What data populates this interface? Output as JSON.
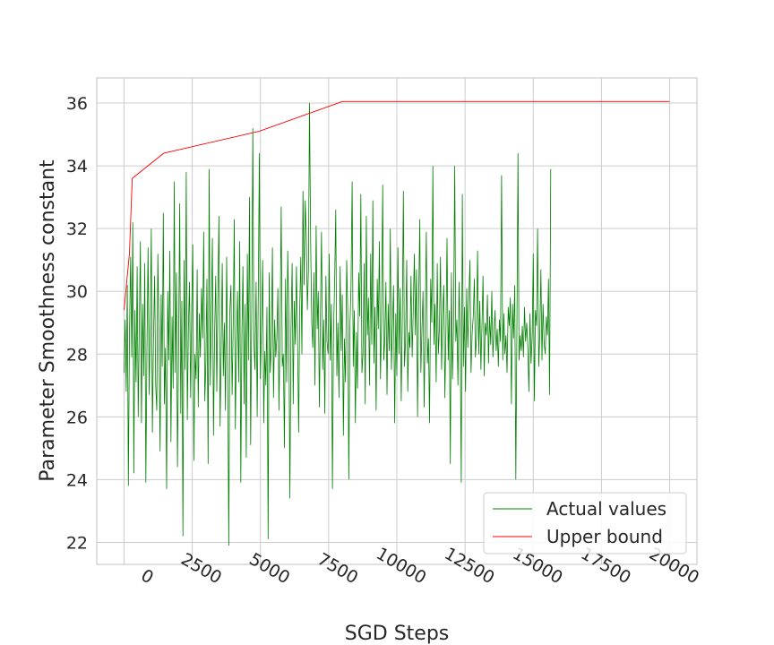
{
  "chart_data": {
    "type": "line",
    "title": "",
    "xlabel": "SGD Steps",
    "ylabel": "Parameter Smoothness constant",
    "xlim": [
      -1000,
      21000
    ],
    "ylim": [
      21.3,
      36.8
    ],
    "x_ticks": [
      0,
      2500,
      5000,
      7500,
      10000,
      12500,
      15000,
      17500,
      20000
    ],
    "x_tick_labels": [
      "0",
      "2500",
      "5000",
      "7500",
      "10000",
      "12500",
      "15000",
      "17500",
      "20000"
    ],
    "y_ticks": [
      22,
      24,
      26,
      28,
      30,
      32,
      34,
      36
    ],
    "y_tick_labels": [
      "22",
      "24",
      "26",
      "28",
      "30",
      "32",
      "34",
      "36"
    ],
    "grid": true,
    "legend_position": "bottom-right",
    "colors": {
      "actual": "#008000",
      "upper": "#ff0000",
      "grid": "#cccccc",
      "frame": "#cccccc"
    },
    "series": [
      {
        "name": "Actual values",
        "color": "#008000",
        "x_start": 0,
        "x_step": 40,
        "values": [
          27.4,
          29.1,
          26.8,
          30.2,
          23.8,
          28.6,
          31.1,
          27.9,
          32.2,
          24.2,
          29.4,
          27.1,
          30.8,
          26.0,
          28.9,
          31.6,
          25.8,
          29.6,
          27.3,
          30.9,
          23.9,
          28.1,
          31.4,
          26.7,
          29.0,
          32.0,
          25.5,
          28.4,
          30.5,
          27.0,
          26.2,
          31.2,
          28.7,
          24.9,
          29.9,
          27.6,
          32.5,
          26.4,
          28.2,
          23.7,
          30.0,
          27.8,
          31.3,
          25.2,
          29.2,
          26.9,
          33.5,
          27.4,
          30.6,
          24.4,
          28.3,
          32.8,
          26.1,
          29.7,
          22.2,
          31.0,
          27.5,
          33.8,
          25.9,
          28.8,
          30.3,
          26.6,
          29.5,
          31.5,
          24.6,
          28.0,
          27.2,
          30.7,
          26.3,
          29.3,
          27.9,
          30.1,
          28.5,
          31.9,
          26.5,
          27.7,
          30.4,
          24.5,
          33.9,
          27.0,
          29.1,
          31.7,
          25.4,
          28.7,
          30.5,
          26.8,
          29.8,
          32.4,
          25.7,
          28.1,
          30.9,
          27.3,
          29.0,
          26.2,
          31.1,
          27.6,
          21.9,
          29.4,
          30.2,
          26.7,
          28.9,
          32.3,
          25.6,
          28.3,
          30.0,
          27.1,
          31.6,
          23.9,
          28.6,
          30.8,
          26.4,
          29.6,
          24.7,
          31.2,
          27.8,
          33.0,
          25.1,
          29.2,
          35.2,
          28.4,
          27.5,
          30.3,
          26.0,
          29.9,
          34.4,
          27.2,
          28.8,
          31.0,
          25.8,
          28.1,
          27.0,
          29.5,
          22.1,
          30.6,
          27.4,
          28.2,
          31.4,
          26.6,
          29.1,
          27.9,
          28.5,
          30.1,
          26.2,
          29.0,
          32.7,
          27.6,
          28.0,
          25.0,
          30.4,
          27.1,
          31.3,
          29.2,
          23.4,
          28.7,
          30.9,
          26.4,
          29.7,
          28.3,
          30.8,
          28.6,
          25.5,
          29.5,
          31.1,
          28.0,
          33.2,
          30.2,
          32.9,
          31.8,
          29.4,
          30.7,
          36.0,
          31.5,
          29.0,
          28.2,
          30.6,
          27.0,
          32.1,
          28.8,
          30.0,
          26.3,
          29.3,
          31.9,
          27.5,
          29.1,
          26.1,
          30.5,
          28.4,
          28.0,
          31.2,
          27.8,
          29.6,
          23.7,
          28.6,
          30.4,
          32.6,
          27.3,
          29.0,
          26.6,
          30.8,
          28.1,
          29.9,
          25.4,
          28.5,
          27.1,
          31.0,
          29.3,
          24.0,
          28.9,
          30.1,
          33.5,
          27.6,
          29.4,
          25.8,
          28.7,
          26.9,
          30.6,
          29.2,
          33.1,
          27.4,
          28.0,
          30.9,
          26.4,
          32.4,
          28.6,
          29.8,
          27.0,
          31.2,
          28.3,
          32.9,
          27.7,
          29.5,
          26.2,
          30.4,
          28.8,
          31.6,
          27.2,
          29.0,
          33.4,
          27.8,
          28.5,
          30.3,
          26.7,
          29.6,
          28.1,
          32.0,
          27.5,
          28.9,
          30.2,
          25.8,
          29.3,
          27.3,
          31.4,
          28.0,
          30.1,
          26.5,
          29.1,
          33.2,
          27.6,
          28.4,
          31.0,
          26.8,
          28.7,
          28.2,
          30.5,
          27.9,
          29.4,
          31.2,
          28.6,
          30.7,
          26.0,
          29.8,
          32.3,
          27.4,
          28.8,
          30.0,
          26.3,
          29.2,
          31.9,
          27.7,
          28.5,
          25.8,
          30.4,
          29.0,
          34.0,
          28.3,
          29.6,
          27.1,
          30.9,
          28.0,
          28.8,
          31.1,
          27.5,
          29.3,
          30.2,
          26.6,
          28.7,
          31.7,
          27.8,
          29.4,
          24.5,
          30.6,
          27.2,
          28.9,
          34.0,
          28.4,
          29.1,
          27.0,
          30.3,
          28.6,
          23.9,
          33.1,
          27.6,
          29.5,
          26.8,
          30.1,
          28.2,
          29.8,
          31.0,
          27.4,
          28.7,
          29.2,
          30.4,
          27.9,
          28.5,
          31.3,
          28.0,
          29.7,
          27.5,
          28.9,
          30.5,
          27.3,
          29.0,
          28.6,
          29.9,
          27.7,
          29.2,
          28.3,
          30.0,
          27.9,
          28.7,
          29.4,
          28.1,
          28.8,
          27.6,
          29.1,
          28.4,
          33.7,
          27.8,
          29.3,
          28.0,
          28.6,
          27.4,
          29.5,
          28.9,
          29.8,
          26.4,
          29.6,
          28.5,
          30.2,
          24.0,
          28.8,
          34.4,
          27.8,
          28.6,
          28.1,
          28.9,
          27.9,
          29.5,
          28.4,
          29.0,
          28.2,
          26.8,
          29.3,
          27.7,
          28.6,
          31.2,
          26.5,
          29.4,
          28.9,
          32.0,
          27.6,
          28.7,
          30.7,
          27.8,
          29.6,
          28.3,
          28.0,
          29.2,
          28.6,
          30.4,
          26.7,
          33.9
        ]
      },
      {
        "name": "Upper bound",
        "color": "#ff0000",
        "points": [
          [
            0,
            29.4
          ],
          [
            120,
            30.5
          ],
          [
            200,
            31.2
          ],
          [
            300,
            33.6
          ],
          [
            1450,
            34.4
          ],
          [
            4950,
            35.1
          ],
          [
            8000,
            36.05
          ],
          [
            20000,
            36.05
          ]
        ]
      }
    ]
  }
}
